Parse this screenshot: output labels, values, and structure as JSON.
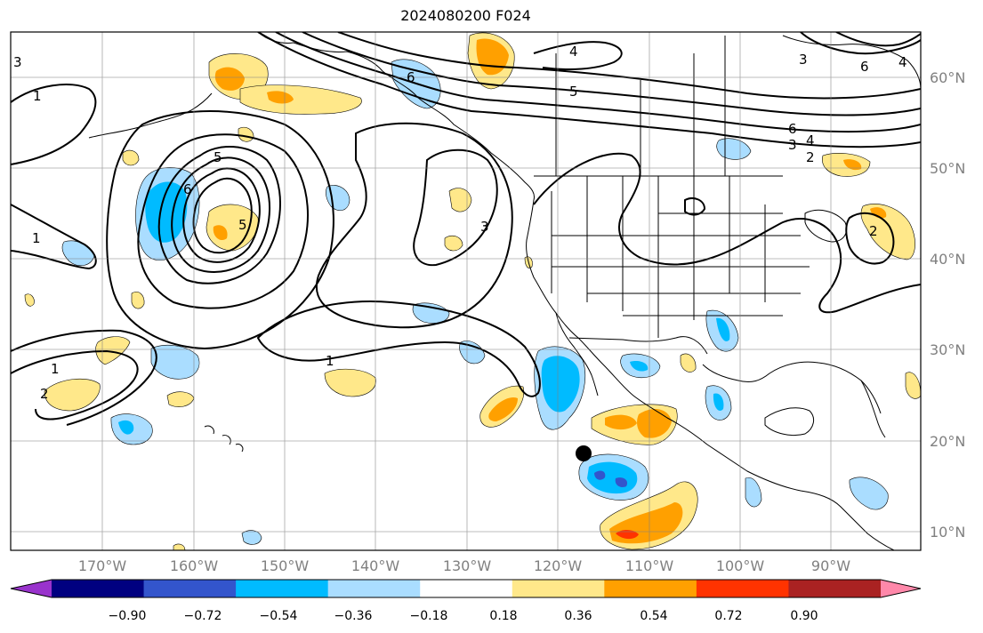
{
  "title": "2024080200 F024",
  "map": {
    "lon_labels": [
      "170°W",
      "160°W",
      "150°W",
      "140°W",
      "130°W",
      "120°W",
      "110°W",
      "100°W",
      "90°W"
    ],
    "lat_labels": [
      "60°N",
      "50°N",
      "40°N",
      "30°N",
      "20°N",
      "10°N"
    ],
    "contour_labels": [
      "1",
      "1",
      "1",
      "1",
      "2",
      "2",
      "2",
      "3",
      "3",
      "3",
      "3",
      "4",
      "4",
      "4",
      "5",
      "5",
      "5",
      "6",
      "6",
      "6",
      "6"
    ],
    "marker": "storm-position-dot"
  },
  "colorbar": {
    "colors": [
      "#9933cc",
      "#000080",
      "#3355cc",
      "#00bbff",
      "#aaddff",
      "#ffffff",
      "#ffe88a",
      "#ffa000",
      "#ff3300",
      "#aa2222",
      "#ff88aa"
    ],
    "tick_labels": [
      "−0.90",
      "−0.72",
      "−0.54",
      "−0.36",
      "−0.18",
      "0.18",
      "0.36",
      "0.54",
      "0.72",
      "0.90"
    ]
  },
  "chart_data": {
    "type": "heatmap",
    "title": "2024080200 F024",
    "xlim": [
      "180°W",
      "80°W"
    ],
    "ylim": [
      "8°N",
      "65°N"
    ],
    "color_levels": [
      -0.9,
      -0.72,
      -0.54,
      -0.36,
      -0.18,
      0.18,
      0.36,
      0.54,
      0.72,
      0.9
    ],
    "contour_levels": [
      1,
      2,
      3,
      4,
      5,
      6
    ],
    "grid": true
  }
}
